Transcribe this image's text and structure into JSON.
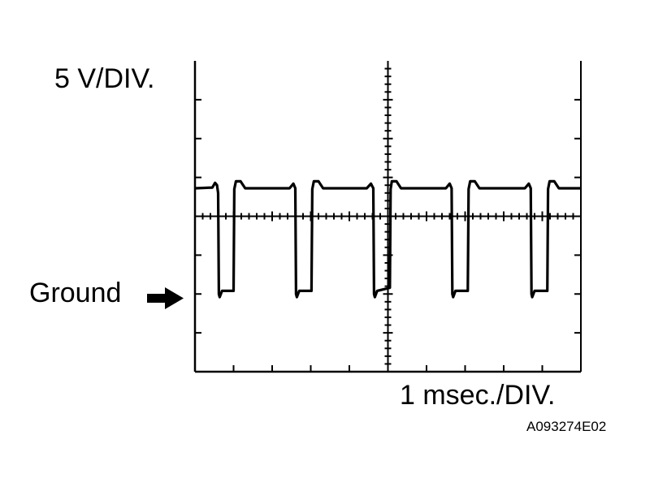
{
  "labels": {
    "vertical_scale": "5 V/DIV.",
    "ground": "Ground",
    "horizontal_scale": "1 msec./DIV.",
    "figure_code": "A093274E02"
  },
  "chart_data": {
    "type": "line",
    "title": "",
    "xlabel": "1 msec./DIV.",
    "ylabel": "5 V/DIV.",
    "x_units": "ms",
    "y_units": "V",
    "xlim": [
      0,
      10
    ],
    "ylim": [
      -10,
      30
    ],
    "x_divisions": 10,
    "y_divisions": 8,
    "ground_level": 0,
    "grid": false,
    "center_crosshair": true,
    "line_color": "#000000",
    "series": [
      {
        "x": [
          0,
          0.45,
          0.52,
          0.57,
          0.6,
          0.62,
          0.64,
          0.7,
          1.0,
          1.02,
          1.06,
          1.18,
          1.3,
          2.45,
          2.55,
          2.6,
          2.62,
          2.64,
          2.7,
          3.02,
          3.04,
          3.08,
          3.2,
          3.32,
          4.45,
          4.56,
          4.62,
          4.64,
          4.66,
          4.72,
          5.05,
          5.07,
          5.1,
          5.22,
          5.34,
          6.5,
          6.6,
          6.65,
          6.67,
          6.69,
          6.75,
          7.07,
          7.09,
          7.13,
          7.25,
          7.37,
          8.55,
          8.65,
          8.7,
          8.72,
          8.74,
          8.8,
          9.13,
          9.15,
          9.19,
          9.31,
          9.43,
          10
        ],
        "y": [
          13.6,
          13.7,
          14.3,
          14.0,
          13.0,
          0.0,
          -0.4,
          0.4,
          0.4,
          13.5,
          14.5,
          14.5,
          13.6,
          13.6,
          14.2,
          13.6,
          0.0,
          -0.4,
          0.4,
          0.4,
          13.5,
          14.5,
          14.5,
          13.6,
          13.6,
          14.2,
          13.6,
          0.0,
          -0.4,
          0.4,
          0.8,
          13.5,
          14.5,
          14.5,
          13.6,
          13.6,
          14.2,
          13.6,
          0.0,
          -0.4,
          0.4,
          0.4,
          13.5,
          14.5,
          14.5,
          13.6,
          13.6,
          14.2,
          13.6,
          0.0,
          -0.4,
          0.4,
          0.4,
          13.5,
          14.5,
          14.5,
          13.6,
          13.6
        ]
      }
    ]
  }
}
